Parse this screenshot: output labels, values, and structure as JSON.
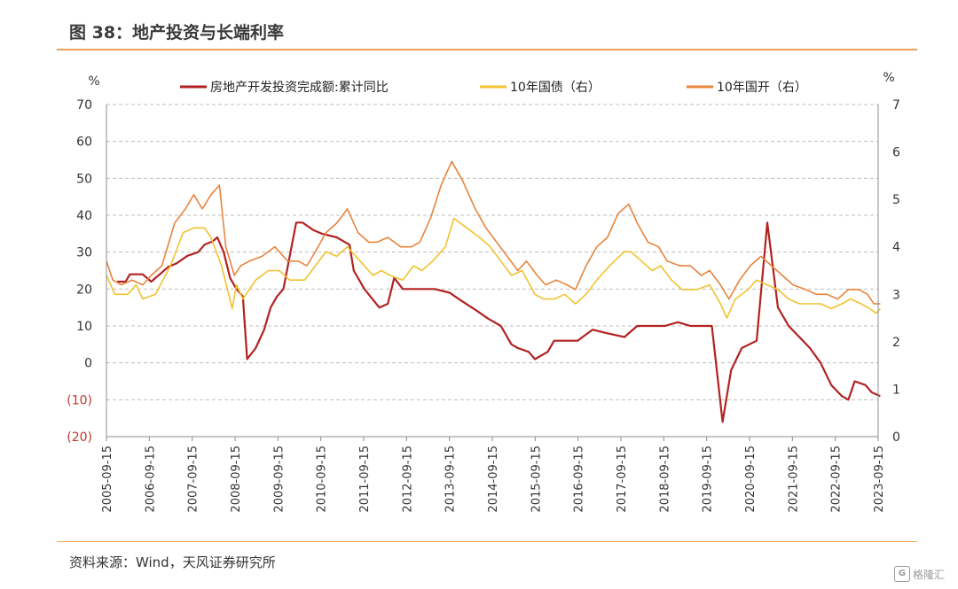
{
  "title": "图 38：地产投资与长端利率",
  "source": "资料来源：Wind，天风证券研究所",
  "watermark": {
    "text": "格隆汇",
    "logo": "G"
  },
  "colors": {
    "investment": "#b22222",
    "cgb10": "#f2c230",
    "cdb10": "#e8843c",
    "negative_tick": "#c0392b",
    "grid": "#bfbfbf",
    "axis": "#8c8c8c"
  },
  "chart_data": {
    "type": "line",
    "left_axis": {
      "unit": "%",
      "ylim": [
        -20,
        70
      ],
      "ticks": [
        "70",
        "60",
        "50",
        "40",
        "30",
        "20",
        "10",
        "0",
        "(10)",
        "(20)"
      ]
    },
    "right_axis": {
      "unit": "%",
      "ylim": [
        0,
        7
      ],
      "ticks": [
        "7",
        "6",
        "5",
        "4",
        "3",
        "2",
        "1",
        "0"
      ]
    },
    "x_ticks": [
      "2005-09-15",
      "2006-09-15",
      "2007-09-15",
      "2008-09-15",
      "2009-09-15",
      "2010-09-15",
      "2011-09-15",
      "2012-09-15",
      "2013-09-15",
      "2014-09-15",
      "2015-09-15",
      "2016-09-15",
      "2017-09-15",
      "2018-09-15",
      "2019-09-15",
      "2020-09-15",
      "2021-09-15",
      "2022-09-15",
      "2023-09-15"
    ],
    "grid": "horizontal dashed",
    "legend": "top",
    "series": [
      {
        "name": "房地产开发投资完成额:累计同比",
        "axis": "left",
        "color": "#b22222",
        "points": [
          [
            2005.95,
            22
          ],
          [
            2006.15,
            22
          ],
          [
            2006.25,
            24
          ],
          [
            2006.55,
            24
          ],
          [
            2006.75,
            22
          ],
          [
            2006.95,
            24
          ],
          [
            2007.15,
            26
          ],
          [
            2007.35,
            27
          ],
          [
            2007.6,
            29
          ],
          [
            2007.85,
            30
          ],
          [
            2008.0,
            32
          ],
          [
            2008.2,
            33
          ],
          [
            2008.3,
            34
          ],
          [
            2008.45,
            30
          ],
          [
            2008.6,
            23
          ],
          [
            2008.75,
            20
          ],
          [
            2008.9,
            18
          ],
          [
            2009.0,
            1
          ],
          [
            2009.2,
            4
          ],
          [
            2009.4,
            9
          ],
          [
            2009.55,
            15
          ],
          [
            2009.7,
            18
          ],
          [
            2009.85,
            20
          ],
          [
            2010.05,
            32
          ],
          [
            2010.15,
            38
          ],
          [
            2010.3,
            38
          ],
          [
            2010.55,
            36
          ],
          [
            2010.75,
            35
          ],
          [
            2011.1,
            34
          ],
          [
            2011.4,
            32
          ],
          [
            2011.5,
            25
          ],
          [
            2011.75,
            20
          ],
          [
            2012.1,
            15
          ],
          [
            2012.3,
            16
          ],
          [
            2012.45,
            23
          ],
          [
            2012.65,
            20
          ],
          [
            2013.1,
            20
          ],
          [
            2013.4,
            20
          ],
          [
            2013.75,
            19
          ],
          [
            2014.0,
            17
          ],
          [
            2014.4,
            14
          ],
          [
            2014.65,
            12
          ],
          [
            2014.95,
            10
          ],
          [
            2015.2,
            5
          ],
          [
            2015.35,
            4
          ],
          [
            2015.6,
            3
          ],
          [
            2015.75,
            1
          ],
          [
            2016.05,
            3
          ],
          [
            2016.2,
            6
          ],
          [
            2016.45,
            6
          ],
          [
            2016.75,
            6
          ],
          [
            2017.1,
            9
          ],
          [
            2017.45,
            8
          ],
          [
            2017.85,
            7
          ],
          [
            2018.15,
            10
          ],
          [
            2018.5,
            10
          ],
          [
            2018.8,
            10
          ],
          [
            2019.1,
            11
          ],
          [
            2019.4,
            10
          ],
          [
            2019.75,
            10
          ],
          [
            2019.9,
            10
          ],
          [
            2020.15,
            -16
          ],
          [
            2020.35,
            -2
          ],
          [
            2020.6,
            4
          ],
          [
            2020.95,
            6
          ],
          [
            2021.2,
            38
          ],
          [
            2021.45,
            15
          ],
          [
            2021.7,
            10
          ],
          [
            2021.95,
            7
          ],
          [
            2022.2,
            4
          ],
          [
            2022.45,
            0
          ],
          [
            2022.7,
            -6
          ],
          [
            2022.95,
            -9
          ],
          [
            2023.1,
            -10
          ],
          [
            2023.25,
            -5
          ],
          [
            2023.5,
            -6
          ],
          [
            2023.65,
            -8
          ],
          [
            2023.85,
            -9
          ]
        ]
      },
      {
        "name": "10年国债（右）",
        "axis": "right",
        "color": "#f2c230",
        "points": [
          [
            2005.7,
            3.4
          ],
          [
            2005.9,
            3.0
          ],
          [
            2006.2,
            3.0
          ],
          [
            2006.4,
            3.2
          ],
          [
            2006.55,
            2.9
          ],
          [
            2006.85,
            3.0
          ],
          [
            2007.2,
            3.6
          ],
          [
            2007.5,
            4.3
          ],
          [
            2007.75,
            4.4
          ],
          [
            2008.0,
            4.4
          ],
          [
            2008.15,
            4.2
          ],
          [
            2008.4,
            3.6
          ],
          [
            2008.65,
            2.7
          ],
          [
            2008.75,
            3.2
          ],
          [
            2008.9,
            2.9
          ],
          [
            2009.2,
            3.3
          ],
          [
            2009.5,
            3.5
          ],
          [
            2009.75,
            3.5
          ],
          [
            2010.0,
            3.3
          ],
          [
            2010.35,
            3.3
          ],
          [
            2010.6,
            3.6
          ],
          [
            2010.85,
            3.9
          ],
          [
            2011.1,
            3.8
          ],
          [
            2011.35,
            4.0
          ],
          [
            2011.65,
            3.7
          ],
          [
            2011.95,
            3.4
          ],
          [
            2012.15,
            3.5
          ],
          [
            2012.35,
            3.4
          ],
          [
            2012.65,
            3.3
          ],
          [
            2012.9,
            3.6
          ],
          [
            2013.1,
            3.5
          ],
          [
            2013.35,
            3.7
          ],
          [
            2013.65,
            4.0
          ],
          [
            2013.85,
            4.6
          ],
          [
            2014.15,
            4.4
          ],
          [
            2014.45,
            4.2
          ],
          [
            2014.7,
            4.0
          ],
          [
            2014.95,
            3.7
          ],
          [
            2015.2,
            3.4
          ],
          [
            2015.45,
            3.5
          ],
          [
            2015.75,
            3.0
          ],
          [
            2015.95,
            2.9
          ],
          [
            2016.2,
            2.9
          ],
          [
            2016.45,
            3.0
          ],
          [
            2016.7,
            2.8
          ],
          [
            2016.95,
            3.0
          ],
          [
            2017.2,
            3.3
          ],
          [
            2017.5,
            3.6
          ],
          [
            2017.85,
            3.9
          ],
          [
            2018.0,
            3.9
          ],
          [
            2018.25,
            3.7
          ],
          [
            2018.5,
            3.5
          ],
          [
            2018.7,
            3.6
          ],
          [
            2018.95,
            3.3
          ],
          [
            2019.2,
            3.1
          ],
          [
            2019.55,
            3.1
          ],
          [
            2019.85,
            3.2
          ],
          [
            2020.1,
            2.8
          ],
          [
            2020.25,
            2.5
          ],
          [
            2020.45,
            2.9
          ],
          [
            2020.75,
            3.1
          ],
          [
            2020.95,
            3.3
          ],
          [
            2021.2,
            3.2
          ],
          [
            2021.45,
            3.1
          ],
          [
            2021.7,
            2.9
          ],
          [
            2021.95,
            2.8
          ],
          [
            2022.2,
            2.8
          ],
          [
            2022.45,
            2.8
          ],
          [
            2022.7,
            2.7
          ],
          [
            2022.95,
            2.8
          ],
          [
            2023.15,
            2.9
          ],
          [
            2023.4,
            2.8
          ],
          [
            2023.6,
            2.7
          ],
          [
            2023.75,
            2.6
          ],
          [
            2023.85,
            2.7
          ]
        ]
      },
      {
        "name": "10年国开（右）",
        "axis": "right",
        "color": "#e8843c",
        "points": [
          [
            2005.7,
            3.7
          ],
          [
            2005.85,
            3.3
          ],
          [
            2006.05,
            3.2
          ],
          [
            2006.3,
            3.3
          ],
          [
            2006.55,
            3.2
          ],
          [
            2006.75,
            3.4
          ],
          [
            2007.0,
            3.6
          ],
          [
            2007.3,
            4.5
          ],
          [
            2007.55,
            4.8
          ],
          [
            2007.75,
            5.1
          ],
          [
            2007.95,
            4.8
          ],
          [
            2008.15,
            5.1
          ],
          [
            2008.35,
            5.3
          ],
          [
            2008.5,
            4.0
          ],
          [
            2008.7,
            3.4
          ],
          [
            2008.85,
            3.6
          ],
          [
            2009.05,
            3.7
          ],
          [
            2009.35,
            3.8
          ],
          [
            2009.65,
            4.0
          ],
          [
            2009.95,
            3.7
          ],
          [
            2010.2,
            3.7
          ],
          [
            2010.4,
            3.6
          ],
          [
            2010.6,
            3.9
          ],
          [
            2010.85,
            4.3
          ],
          [
            2011.1,
            4.5
          ],
          [
            2011.35,
            4.8
          ],
          [
            2011.6,
            4.3
          ],
          [
            2011.85,
            4.1
          ],
          [
            2012.05,
            4.1
          ],
          [
            2012.3,
            4.2
          ],
          [
            2012.6,
            4.0
          ],
          [
            2012.85,
            4.0
          ],
          [
            2013.05,
            4.1
          ],
          [
            2013.3,
            4.6
          ],
          [
            2013.55,
            5.3
          ],
          [
            2013.8,
            5.8
          ],
          [
            2014.05,
            5.4
          ],
          [
            2014.35,
            4.8
          ],
          [
            2014.6,
            4.4
          ],
          [
            2014.85,
            4.1
          ],
          [
            2015.1,
            3.8
          ],
          [
            2015.35,
            3.5
          ],
          [
            2015.55,
            3.7
          ],
          [
            2015.8,
            3.4
          ],
          [
            2016.0,
            3.2
          ],
          [
            2016.25,
            3.3
          ],
          [
            2016.5,
            3.2
          ],
          [
            2016.7,
            3.1
          ],
          [
            2016.95,
            3.6
          ],
          [
            2017.2,
            4.0
          ],
          [
            2017.45,
            4.2
          ],
          [
            2017.7,
            4.7
          ],
          [
            2017.95,
            4.9
          ],
          [
            2018.15,
            4.5
          ],
          [
            2018.4,
            4.1
          ],
          [
            2018.65,
            4.0
          ],
          [
            2018.85,
            3.7
          ],
          [
            2019.15,
            3.6
          ],
          [
            2019.4,
            3.6
          ],
          [
            2019.65,
            3.4
          ],
          [
            2019.85,
            3.5
          ],
          [
            2020.1,
            3.2
          ],
          [
            2020.3,
            2.9
          ],
          [
            2020.55,
            3.3
          ],
          [
            2020.8,
            3.6
          ],
          [
            2021.05,
            3.8
          ],
          [
            2021.3,
            3.6
          ],
          [
            2021.55,
            3.4
          ],
          [
            2021.8,
            3.2
          ],
          [
            2022.1,
            3.1
          ],
          [
            2022.35,
            3.0
          ],
          [
            2022.6,
            3.0
          ],
          [
            2022.85,
            2.9
          ],
          [
            2023.1,
            3.1
          ],
          [
            2023.35,
            3.1
          ],
          [
            2023.55,
            3.0
          ],
          [
            2023.7,
            2.8
          ],
          [
            2023.85,
            2.8
          ]
        ]
      }
    ]
  }
}
